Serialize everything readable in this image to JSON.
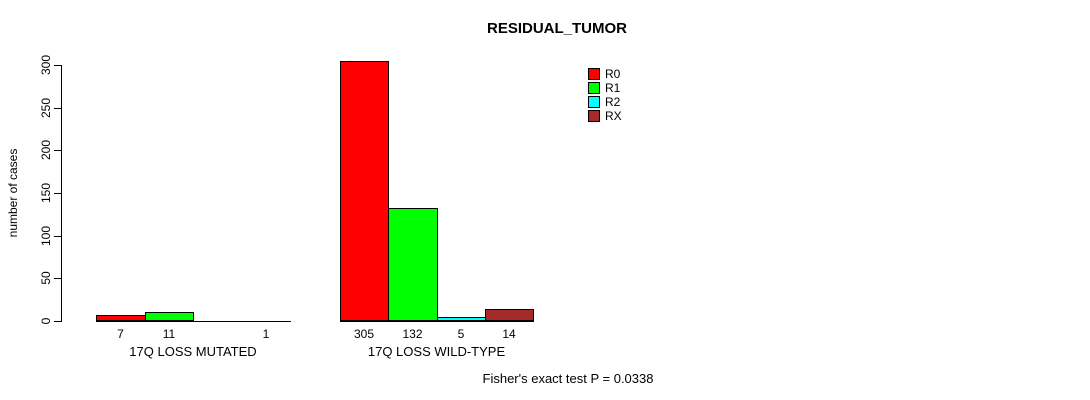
{
  "title": "RESIDUAL_TUMOR",
  "y_axis": {
    "label": "number of cases",
    "ticks": [
      0,
      50,
      100,
      150,
      200,
      250,
      300
    ]
  },
  "legend": {
    "items": [
      {
        "label": "R0",
        "color": "#FF0000"
      },
      {
        "label": "R1",
        "color": "#00FF00"
      },
      {
        "label": "R2",
        "color": "#00FFFF"
      },
      {
        "label": "RX",
        "color": "#A52A2A"
      }
    ]
  },
  "chart_data": {
    "type": "bar",
    "title": "RESIDUAL_TUMOR",
    "xlabel": "",
    "ylabel": "number of cases",
    "ylim": [
      0,
      300
    ],
    "grid": false,
    "legend_position": "top-right",
    "categories": [
      "17Q LOSS MUTATED",
      "17Q LOSS WILD-TYPE"
    ],
    "series": [
      {
        "name": "R0",
        "color": "#FF0000",
        "values": [
          7,
          305
        ]
      },
      {
        "name": "R1",
        "color": "#00FF00",
        "values": [
          11,
          132
        ]
      },
      {
        "name": "R2",
        "color": "#00FFFF",
        "values": [
          null,
          5
        ]
      },
      {
        "name": "RX",
        "color": "#A52A2A",
        "values": [
          1,
          14
        ]
      }
    ],
    "bar_value_labels": {
      "17Q LOSS MUTATED": [
        "7",
        "11",
        "",
        "1"
      ],
      "17Q LOSS WILD-TYPE": [
        "305",
        "132",
        "5",
        "14"
      ]
    }
  },
  "footer": {
    "stat_text": "Fisher's exact test P = 0.0338"
  }
}
